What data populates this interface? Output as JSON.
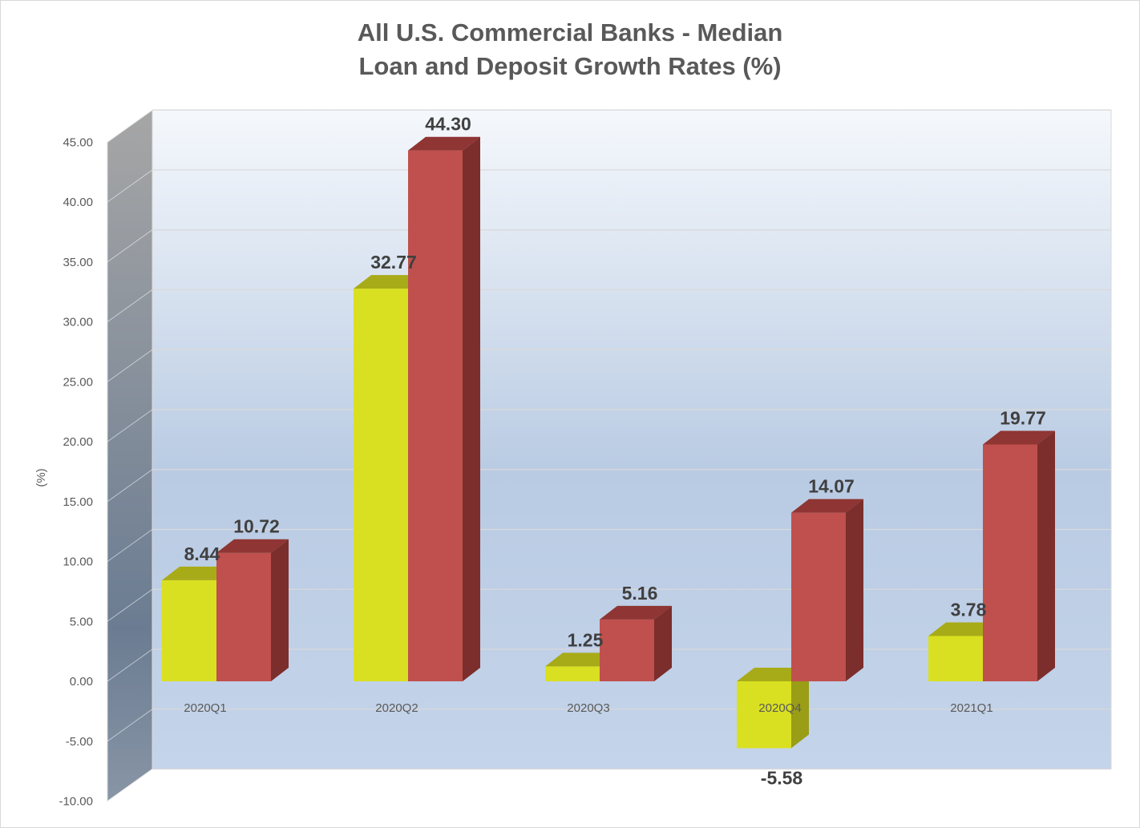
{
  "chart_data": {
    "type": "bar",
    "title_line1": "All U.S. Commercial Banks - Median",
    "title_line2": "Loan and Deposit Growth Rates (%)",
    "ylabel": "(%)",
    "xlabel": "",
    "categories": [
      "2020Q1",
      "2020Q2",
      "2020Q3",
      "2020Q4",
      "2021Q1"
    ],
    "series": [
      {
        "values": [
          8.44,
          32.77,
          1.25,
          -5.58,
          3.78
        ],
        "labels": [
          "8.44",
          "32.77",
          "1.25",
          "-5.58",
          "3.78"
        ],
        "color": "#d9e021",
        "top_color": "#a8ab18",
        "side_color": "#9a9d16"
      },
      {
        "values": [
          10.72,
          44.3,
          5.16,
          14.07,
          19.77
        ],
        "labels": [
          "10.72",
          "44.30",
          "5.16",
          "14.07",
          "19.77"
        ],
        "color": "#c0504d",
        "top_color": "#8f3533",
        "side_color": "#7b2e2c"
      }
    ],
    "ylim": [
      -10,
      45
    ],
    "yticks": [
      "-10.00",
      "-5.00",
      "0.00",
      "5.00",
      "10.00",
      "15.00",
      "20.00",
      "25.00",
      "30.00",
      "35.00",
      "40.00",
      "45.00"
    ],
    "grid": true,
    "projection": "3d-column"
  }
}
